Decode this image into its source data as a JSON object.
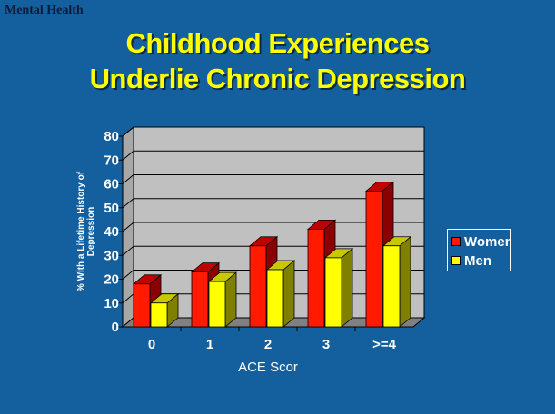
{
  "header": "Mental Health",
  "title_lines": [
    "Childhood Experiences",
    "Underlie Chronic Depression"
  ],
  "chart_data": {
    "type": "bar",
    "style": "3d-clustered-column",
    "title": "Childhood Experiences Underlie Chronic Depression",
    "xlabel": "ACE Scor",
    "ylabel_lines": [
      "% With a Lifetime History of",
      "Depression"
    ],
    "categories": [
      "0",
      "1",
      "2",
      "3",
      ">=4"
    ],
    "ylim": [
      0,
      80
    ],
    "yticks": [
      0,
      10,
      20,
      30,
      40,
      50,
      60,
      70,
      80
    ],
    "grid": true,
    "legend_position": "right",
    "series": [
      {
        "name": "Women",
        "values": [
          18,
          23,
          34,
          41,
          57
        ],
        "color": "#ff1a00",
        "side_color": "#8b0000"
      },
      {
        "name": "Men",
        "values": [
          10,
          19,
          24,
          29,
          34
        ],
        "color": "#ffff00",
        "side_color": "#808000"
      }
    ],
    "wall_color": "#c0c0c0",
    "floor_color": "#808080"
  }
}
